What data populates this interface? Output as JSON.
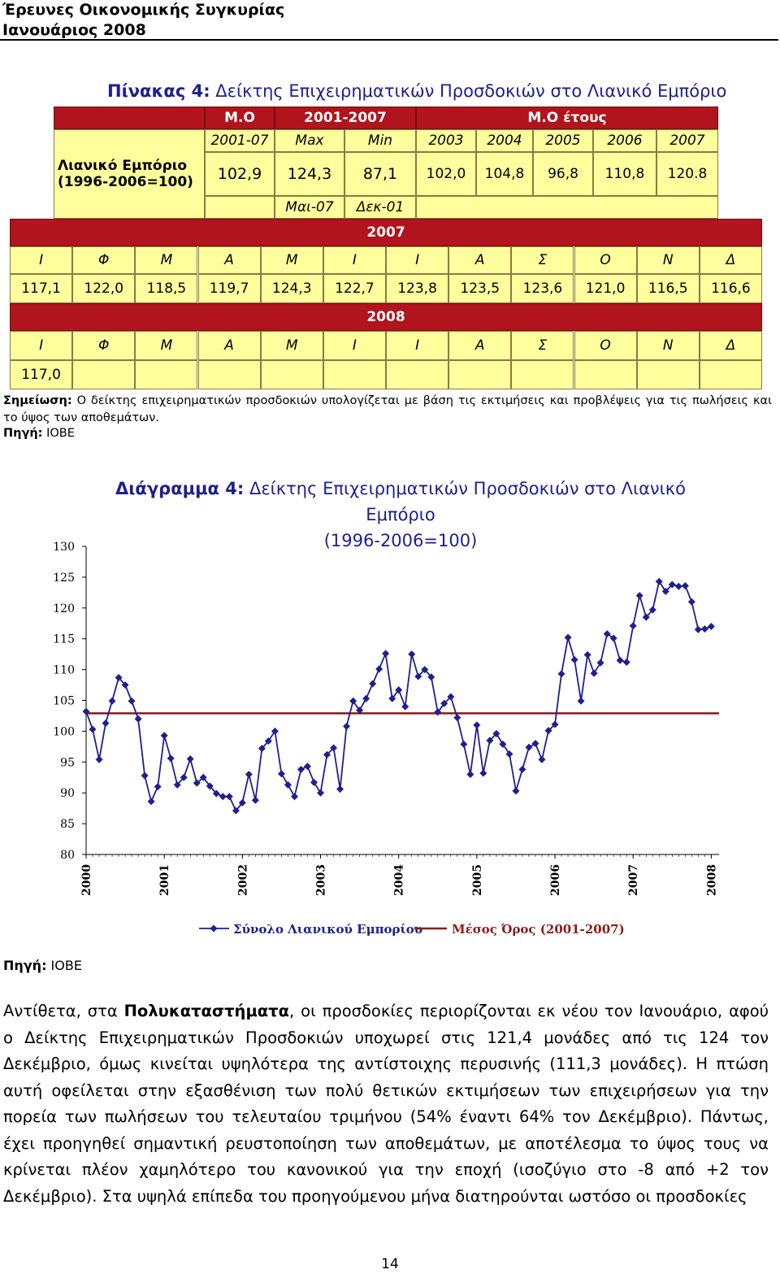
{
  "header": {
    "line1": "Έρευνες Οικονομικής Συγκυρίας",
    "line2": "Ιανουάριος 2008"
  },
  "table": {
    "title_bold": "Πίνακας 4:",
    "title_rest": " Δείκτης Επιχειρηματικών Προσδοκιών στο Λιανικό Εμπόριο",
    "head": {
      "mo": "Μ.Ο",
      "period": "2001-2007",
      "mo_year": "Μ.Ο έτους"
    },
    "cols": [
      "2001-07",
      "Max",
      "Min",
      "2003",
      "2004",
      "2005",
      "2006",
      "2007"
    ],
    "row_label_1": "Λιανικό Εμπόριο",
    "row_label_2": "(1996-2006=100)",
    "values": [
      "102,9",
      "124,3",
      "87,1",
      "102,0",
      "104,8",
      "96,8",
      "110,8",
      "120.8"
    ],
    "dates": [
      "Μαι-07",
      "Δεκ-01"
    ],
    "year_2007": "2007",
    "months": [
      "Ι",
      "Φ",
      "Μ",
      "Α",
      "Μ",
      "Ι",
      "Ι",
      "Α",
      "Σ",
      "Ο",
      "Ν",
      "Δ"
    ],
    "values_2007": [
      "117,1",
      "122,0",
      "118,5",
      "119,7",
      "124,3",
      "122,7",
      "123,8",
      "123,5",
      "123,6",
      "121,0",
      "116,5",
      "116,6"
    ],
    "year_2008": "2008",
    "months_2008": [
      "Ι",
      "Φ",
      "Μ",
      "Α",
      "Μ",
      "Ι",
      "Ι",
      "Α",
      "Σ",
      "Ο",
      "Ν",
      "Δ"
    ],
    "values_2008": [
      "117,0"
    ]
  },
  "note": {
    "label": "Σημείωση:",
    "text": " Ο δείκτης επιχειρηματικών προσδοκιών υπολογίζεται με βάση τις εκτιμήσεις και προβλέψεις για τις πωλήσεις και το ύψος των αποθεμάτων."
  },
  "source1": {
    "label": "Πηγή:",
    "text": " ΙΟΒΕ"
  },
  "chart_data": {
    "type": "line",
    "title_bold": "Διάγραμμα 4:",
    "title_rest": " Δείκτης Επιχειρηματικών Προσδοκιών στο Λιανικό Εμπόριο",
    "subtitle": "(1996-2006=100)",
    "ylim": [
      80,
      130
    ],
    "yticks": [
      80,
      85,
      90,
      95,
      100,
      105,
      110,
      115,
      120,
      125,
      130
    ],
    "xticks": [
      "2000",
      "2001",
      "2002",
      "2003",
      "2004",
      "2005",
      "2006",
      "2007",
      "2008"
    ],
    "xlim": [
      2000,
      2008.1
    ],
    "colors": {
      "series": "#1f1f8f",
      "mean": "#8b1a1a"
    },
    "series": [
      {
        "name": "Σύνολο Λιανικού Εμπορίου",
        "x": [
          2000.0,
          2000.083,
          2000.167,
          2000.25,
          2000.333,
          2000.417,
          2000.5,
          2000.583,
          2000.667,
          2000.75,
          2000.833,
          2000.917,
          2001.0,
          2001.083,
          2001.167,
          2001.25,
          2001.333,
          2001.417,
          2001.5,
          2001.583,
          2001.667,
          2001.75,
          2001.833,
          2001.917,
          2002.0,
          2002.083,
          2002.167,
          2002.25,
          2002.333,
          2002.417,
          2002.5,
          2002.583,
          2002.667,
          2002.75,
          2002.833,
          2002.917,
          2003.0,
          2003.083,
          2003.167,
          2003.25,
          2003.333,
          2003.417,
          2003.5,
          2003.583,
          2003.667,
          2003.75,
          2003.833,
          2003.917,
          2004.0,
          2004.083,
          2004.167,
          2004.25,
          2004.333,
          2004.417,
          2004.5,
          2004.583,
          2004.667,
          2004.75,
          2004.833,
          2004.917,
          2005.0,
          2005.083,
          2005.167,
          2005.25,
          2005.333,
          2005.417,
          2005.5,
          2005.583,
          2005.667,
          2005.75,
          2005.833,
          2005.917,
          2006.0,
          2006.083,
          2006.167,
          2006.25,
          2006.333,
          2006.417,
          2006.5,
          2006.583,
          2006.667,
          2006.75,
          2006.833,
          2006.917,
          2007.0,
          2007.083,
          2007.167,
          2007.25,
          2007.333,
          2007.417,
          2007.5,
          2007.583,
          2007.667,
          2007.75,
          2007.833,
          2007.917,
          2008.0
        ],
        "values": [
          103.2,
          100.3,
          95.4,
          101.3,
          104.9,
          108.7,
          107.5,
          104.9,
          102.0,
          92.8,
          88.6,
          91.0,
          99.3,
          95.6,
          91.3,
          92.5,
          95.5,
          91.6,
          92.5,
          91.1,
          89.9,
          89.4,
          89.4,
          87.1,
          88.4,
          93.0,
          88.8,
          97.2,
          98.4,
          100.0,
          93.1,
          91.3,
          89.4,
          93.8,
          94.3,
          91.7,
          90.0,
          96.2,
          97.3,
          90.6,
          100.8,
          104.9,
          103.4,
          105.3,
          107.7,
          110.1,
          112.6,
          105.3,
          106.7,
          104.0,
          112.5,
          108.9,
          110.0,
          108.8,
          103.1,
          104.5,
          105.6,
          102.2,
          97.9,
          93.0,
          101.0,
          93.2,
          98.5,
          99.6,
          97.9,
          96.3,
          90.3,
          93.8,
          97.4,
          98.0,
          95.4,
          100.1,
          101.1,
          109.3,
          115.2,
          111.6,
          104.9,
          112.4,
          109.4,
          111.1,
          115.8,
          115.1,
          111.5,
          111.2,
          117.1,
          122.0,
          118.5,
          119.7,
          124.3,
          122.7,
          123.8,
          123.5,
          123.6,
          121.0,
          116.5,
          116.6,
          117.0
        ]
      },
      {
        "name": "Μέσος Όρος (2001-2007)",
        "value": 102.9
      }
    ],
    "legend": "bottom"
  },
  "source2": {
    "label": "Πηγή:",
    "text": " ΙΟΒΕ"
  },
  "paragraph": {
    "p1": "Αντίθετα, στα ",
    "bold": "Πολυκαταστήματα",
    "p2": ", οι προσδοκίες περιορίζονται εκ νέου τον Ιανουάριο, αφού ο Δείκτης Επιχειρηματικών Προσδοκιών υποχωρεί στις 121,4 μονάδες από τις 124 τον Δεκέμβριο, όμως κινείται υψηλότερα της αντίστοιχης περυσινής (111,3 μονάδες). Η πτώση αυτή οφείλεται στην εξασθένιση των πολύ θετικών εκτιμήσεων των επιχειρήσεων για την πορεία των πωλήσεων του τελευταίου τριμήνου (54% έναντι 64% τον Δεκέμβριο). Πάντως, έχει προηγηθεί σημαντική ρευστοποίηση των αποθεμάτων, με αποτέλεσμα το ύψος τους να κρίνεται πλέον χαμηλότερο του κανονικού για την εποχή (ισοζύγιο στο -8 από +2 τον Δεκέμβριο). Στα υψηλά επίπεδα του προηγούμενου μήνα διατηρούνται ωστόσο οι προσδοκίες"
  },
  "page_number": "14"
}
